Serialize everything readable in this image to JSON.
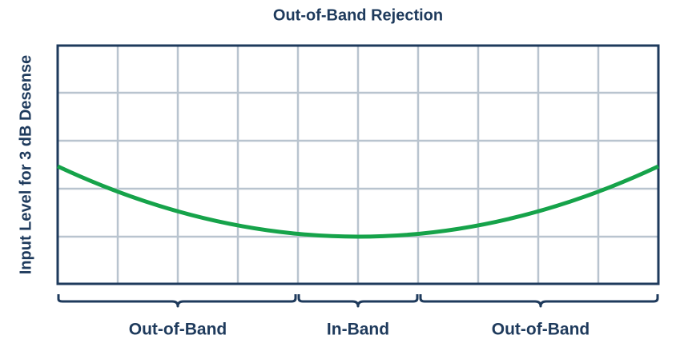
{
  "header": {
    "title": "Out-of-Band Rejection"
  },
  "axis": {
    "y_label": "Input Level for 3 dB Desense"
  },
  "bands": [
    {
      "label": "Out-of-Band"
    },
    {
      "label": "In-Band"
    },
    {
      "label": "Out-of-Band"
    }
  ]
}
